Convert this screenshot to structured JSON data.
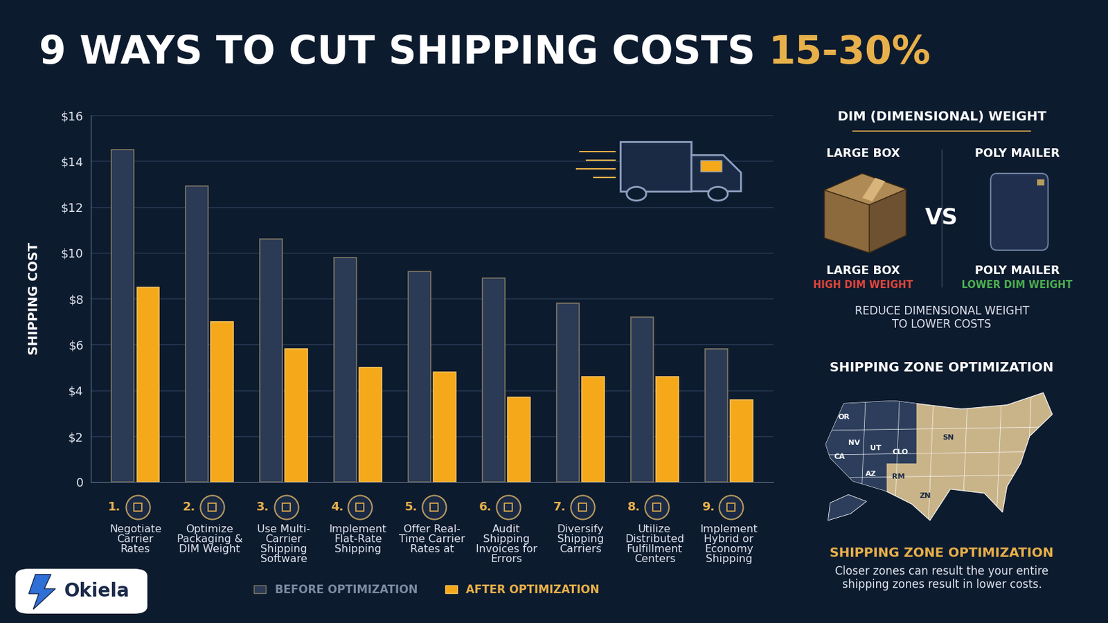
{
  "header": {
    "title": "9 WAYS TO CUT SHIPPING COSTS",
    "highlight": "15-30%"
  },
  "chart_data": {
    "type": "bar",
    "y_label": "SHIPPING COST",
    "numbers": [
      "1.",
      "2.",
      "3.",
      "4.",
      "5.",
      "6.",
      "7.",
      "8.",
      "9."
    ],
    "categories": [
      "Negotiate Carrier Rates",
      "Optimize Packaging & DIM Weight",
      "Use Multi-Carrier Shipping Software",
      "Implement Flat-Rate Shipping",
      "Offer Real-Time Carrier Rates at",
      "Audit Shipping Invoices for Errors",
      "Diversify Shipping Carriers",
      "Utilize Distributed Fulfillment Centers",
      "Implement Hybrid or Economy Shipping"
    ],
    "series": [
      {
        "name": "BEFORE OPTIMIZATION",
        "color": "#2b3a55",
        "values": [
          14.5,
          12.9,
          10.6,
          9.8,
          9.2,
          8.9,
          7.8,
          7.2,
          5.8
        ]
      },
      {
        "name": "AFTER OPTIMIZATION",
        "color": "#f5a91a",
        "values": [
          8.5,
          7.0,
          5.8,
          5.0,
          4.8,
          3.7,
          4.6,
          4.6,
          3.6
        ]
      }
    ],
    "ylim": [
      0,
      16
    ],
    "yticks": [
      0,
      {
        "value": 2,
        "label": "$2"
      },
      {
        "value": 4,
        "label": "$4"
      },
      {
        "value": 6,
        "label": "$6"
      },
      {
        "value": 8,
        "label": "$8"
      },
      {
        "value": 10,
        "label": "$10"
      },
      {
        "value": 12,
        "label": "$12"
      },
      {
        "value": 14,
        "label": "$14"
      },
      {
        "value": 16,
        "label": "$16"
      }
    ],
    "grid": true,
    "legend": "lower center"
  },
  "dim_panel": {
    "title": "DIM (DIMENSIONAL) WEIGHT",
    "left_top": "LARGE BOX",
    "right_top": "POLY MAILER",
    "vs": "VS",
    "left_name": "LARGE BOX",
    "left_note": "HIGH DIM WEIGHT",
    "right_name": "POLY MAILER",
    "right_note": "LOWER DIM WEIGHT",
    "caption": "REDUCE DIMENSIONAL WEIGHT TO LOWER COSTS"
  },
  "zone_panel": {
    "title": "SHIPPING ZONE OPTIMIZATION",
    "map_labels": [
      "OR",
      "NV",
      "UT",
      "CA",
      "AZ",
      "CLO",
      "RM",
      "ZN",
      "SN"
    ],
    "subtitle": "SHIPPING ZONE OPTIMIZATION",
    "caption": "Closer zones can result the your entire shipping zones result in lower costs."
  },
  "brand": "Okiela"
}
